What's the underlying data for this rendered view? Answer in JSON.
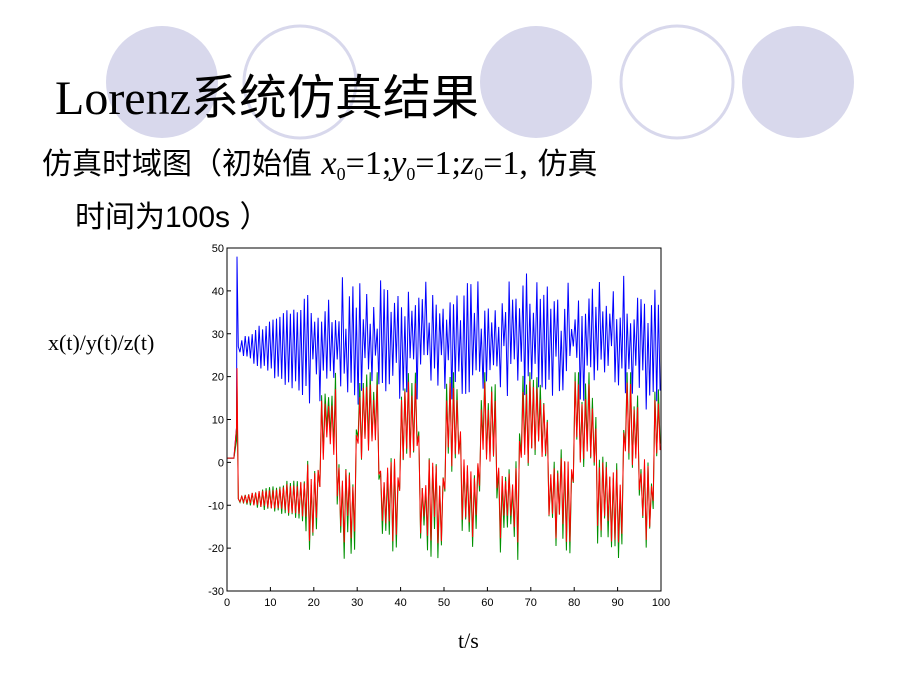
{
  "slide": {
    "title": "Lorenz系统仿真结果",
    "subtitle_prefix": "仿真时域图（初始值",
    "x_sym": "x",
    "y_sym": "y",
    "z_sym": "z",
    "sub0": "0",
    "eq1": "=1;",
    "eq2": "=1;",
    "eq3": "=1,",
    "subtitle_tail": "仿真",
    "line2_zh": "时间为",
    "line2_num": "100s",
    "line2_close": "）",
    "colors": {
      "accent_circle": "#d8d8ec",
      "outline_circle": "#cfcfe8"
    }
  },
  "chart_data": {
    "type": "line",
    "ylabel": "x(t)/y(t)/z(t)",
    "xlabel": "t/s",
    "xlim": [
      0,
      100
    ],
    "ylim": [
      -30,
      50
    ],
    "xticks": [
      "0",
      "10",
      "20",
      "30",
      "40",
      "50",
      "60",
      "70",
      "80",
      "90",
      "100"
    ],
    "yticks": [
      "-30",
      "-20",
      "-10",
      "0",
      "10",
      "20",
      "30",
      "40",
      "50"
    ],
    "grid": false,
    "legend": "none",
    "series_colors": {
      "z": "#0000ff",
      "x": "#ff0000",
      "y": "#009000"
    },
    "series_shape": {
      "initial_value": 1,
      "initial_flat_until": 1.9,
      "transient_peak_time": 2.3,
      "z_transient_peak": 48,
      "x_transient_peak": 22,
      "settle_time": 2.6,
      "z_center_early": 27,
      "xy_center_early": -8.5,
      "spiral_growth_until": 18,
      "z_max_range": [
        38,
        45
      ],
      "z_min_range": [
        12,
        22
      ],
      "x_range": [
        -23,
        21
      ]
    }
  }
}
